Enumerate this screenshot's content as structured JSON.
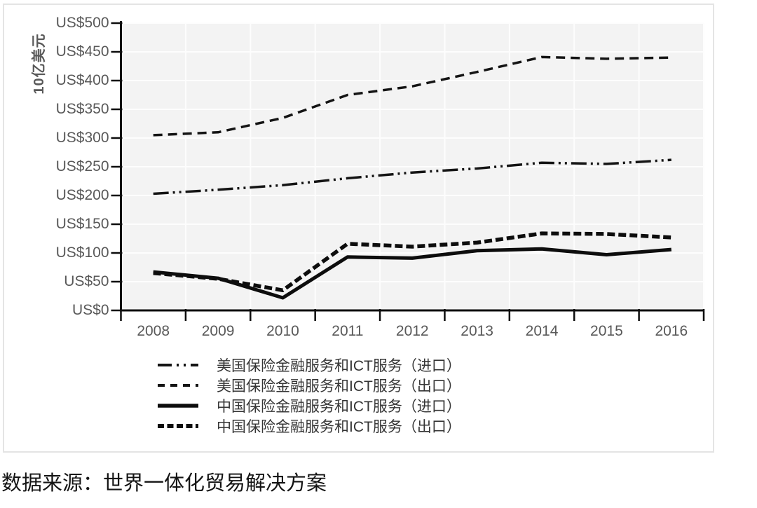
{
  "caption": "数据来源：世界一体化贸易解决方案",
  "colors": {
    "axis_line": "#0d0d0d",
    "axis_label": "#595959",
    "plot_background": "#f3f3f3",
    "gridline": "#fdfdfd",
    "figure_border": "#e4e4e4",
    "series_line": "#141414"
  },
  "chart_data": {
    "type": "line",
    "title": "",
    "y_axis_title": "10亿美元",
    "y_tick_prefix": "US$",
    "ylim": [
      0,
      500
    ],
    "y_tick_step": 50,
    "grid": true,
    "legend_position": "bottom-left",
    "categories": [
      "2008",
      "2009",
      "2010",
      "2011",
      "2012",
      "2013",
      "2014",
      "2015",
      "2016"
    ],
    "y_tick_labels": [
      "US$0",
      "US$50",
      "US$100",
      "US$150",
      "US$200",
      "US$250",
      "US$300",
      "US$350",
      "US$400",
      "US$450",
      "US$500"
    ],
    "series": [
      {
        "name": "美国保险金融服务和ICT服务（进口）",
        "line_style": "dash-dot-dot",
        "weight": "medium",
        "color": "#141414",
        "values": [
          203,
          210,
          218,
          230,
          240,
          247,
          257,
          255,
          262
        ]
      },
      {
        "name": "美国保险金融服务和ICT服务（出口）",
        "line_style": "dashed",
        "weight": "medium",
        "color": "#141414",
        "values": [
          305,
          310,
          335,
          375,
          390,
          415,
          441,
          438,
          440
        ]
      },
      {
        "name": "中国保险金融服务和ICT服务（进口）",
        "line_style": "solid",
        "weight": "heavy",
        "color": "#0d0d0d",
        "values": [
          67,
          56,
          22,
          93,
          91,
          104,
          107,
          97,
          106
        ]
      },
      {
        "name": "中国保险金融服务和ICT服务（出口）",
        "line_style": "heavy-dashed",
        "weight": "heavy",
        "color": "#0d0d0d",
        "values": [
          65,
          55,
          35,
          116,
          111,
          118,
          134,
          133,
          127
        ]
      }
    ]
  }
}
